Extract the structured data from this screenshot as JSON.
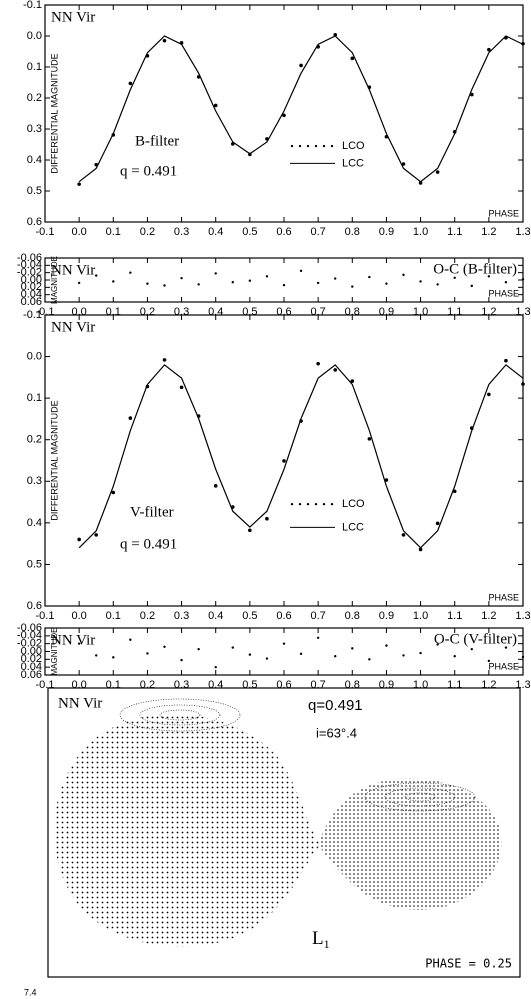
{
  "chart_data": [
    {
      "type": "scatter",
      "title": "NN Vir",
      "x_label": "PHASE",
      "y_label": "DIFFERENTIAL MAGNITUDE",
      "annotations": [
        "B-filter",
        "q  =  0.491"
      ],
      "x": [
        0,
        0.05,
        0.1,
        0.15,
        0.2,
        0.25,
        0.3,
        0.35,
        0.4,
        0.45,
        0.5,
        0.55,
        0.6,
        0.65,
        0.7,
        0.75,
        0.8,
        0.85,
        0.9,
        0.95,
        1,
        1.05,
        1.1,
        1.15,
        1.2,
        1.25,
        1.3
      ],
      "series": [
        {
          "name": "LCO",
          "style": "dots",
          "color": "#000000",
          "values": [
            0.478,
            0.415,
            0.319,
            0.153,
            0.064,
            0.015,
            0.022,
            0.132,
            0.224,
            0.348,
            0.382,
            0.332,
            0.256,
            0.095,
            0.035,
            -0.004,
            0.072,
            0.165,
            0.325,
            0.413,
            0.474,
            0.439,
            0.309,
            0.189,
            0.044,
            0.006,
            0.025
          ]
        },
        {
          "name": "LCC",
          "style": "line",
          "color": "#000000",
          "values": [
            0.47,
            0.427,
            0.315,
            0.173,
            0.054,
            0,
            0.027,
            0.12,
            0.242,
            0.342,
            0.38,
            0.342,
            0.242,
            0.12,
            0.027,
            0,
            0.054,
            0.173,
            0.315,
            0.427,
            0.47,
            0.427,
            0.315,
            0.173,
            0.054,
            0,
            0.027
          ]
        }
      ],
      "xlim": [
        -0.1,
        1.3
      ],
      "xticks": [
        -0.1,
        {
          "value": 0,
          "label": "0.0"
        },
        0.1,
        0.2,
        0.3,
        0.4,
        0.5,
        0.6,
        0.7,
        0.8,
        0.9,
        {
          "value": 1,
          "label": "1.0"
        },
        1.1,
        1.2,
        1.3
      ],
      "ylim": [
        -0.1,
        0.6
      ],
      "y_inverted": true,
      "yticks": [
        -0.1,
        {
          "value": 0,
          "label": "0.0"
        },
        0.1,
        0.2,
        0.3,
        0.4,
        0.5,
        0.6
      ]
    },
    {
      "type": "residual",
      "title": "NN Vir",
      "x_label": "PHASE",
      "y_label": "MAGNITUDE",
      "annotations": [
        "O-C (B-filter)"
      ],
      "x": [
        0,
        0.05,
        0.1,
        0.15,
        0.2,
        0.25,
        0.3,
        0.35,
        0.4,
        0.45,
        0.5,
        0.55,
        0.6,
        0.65,
        0.7,
        0.75,
        0.8,
        0.85,
        0.9,
        0.95,
        1,
        1.05,
        1.1,
        1.15,
        1.2,
        1.25,
        1.3
      ],
      "values": [
        0.008,
        -0.012,
        0.004,
        -0.02,
        0.01,
        0.015,
        -0.005,
        0.012,
        -0.018,
        0.006,
        0.002,
        -0.01,
        0.014,
        -0.025,
        0.008,
        -0.004,
        0.018,
        -0.008,
        0.01,
        -0.014,
        0.004,
        0.012,
        -0.006,
        0.016,
        -0.01,
        0.006,
        -0.002
      ],
      "xlim": [
        -0.1,
        1.3
      ],
      "xticks": [
        -0.1,
        {
          "value": 0,
          "label": "0.0"
        },
        0.1,
        0.2,
        0.3,
        0.4,
        0.5,
        0.6,
        0.7,
        0.8,
        0.9,
        {
          "value": 1,
          "label": "1.0"
        },
        1.1,
        1.2,
        1.3
      ],
      "ylim": [
        -0.06,
        0.06
      ],
      "y_inverted": true,
      "yticks": [
        -0.06,
        -0.04,
        -0.02,
        {
          "value": 0,
          "label": "0.00"
        },
        0.02,
        0.04,
        0.06
      ]
    },
    {
      "type": "scatter",
      "title": "NN Vir",
      "x_label": "PHASE",
      "y_label": "DIFFERENTIAL MAGNITUDE",
      "annotations": [
        "V-filter",
        "q  =  0.491"
      ],
      "x": [
        0,
        0.05,
        0.1,
        0.15,
        0.2,
        0.25,
        0.3,
        0.35,
        0.4,
        0.45,
        0.5,
        0.55,
        0.6,
        0.65,
        0.7,
        0.75,
        0.8,
        0.85,
        0.9,
        0.95,
        1,
        1.05,
        1.1,
        1.15,
        1.2,
        1.25,
        1.3
      ],
      "series": [
        {
          "name": "LCO",
          "style": "dots",
          "color": "#000000",
          "values": [
            0.44,
            0.429,
            0.327,
            0.148,
            0.072,
            0.008,
            0.074,
            0.143,
            0.311,
            0.362,
            0.418,
            0.39,
            0.251,
            0.155,
            0.017,
            0.032,
            0.059,
            0.198,
            0.297,
            0.429,
            0.464,
            0.401,
            0.324,
            0.172,
            0.091,
            0.01,
            0.066
          ]
        },
        {
          "name": "LCC",
          "style": "line",
          "color": "#000000",
          "values": [
            0.46,
            0.419,
            0.312,
            0.178,
            0.067,
            0.02,
            0.052,
            0.149,
            0.271,
            0.372,
            0.41,
            0.372,
            0.271,
            0.149,
            0.052,
            0.02,
            0.067,
            0.178,
            0.312,
            0.419,
            0.46,
            0.419,
            0.312,
            0.178,
            0.067,
            0.02,
            0.052
          ]
        }
      ],
      "xlim": [
        -0.1,
        1.3
      ],
      "xticks": [
        -0.1,
        {
          "value": 0,
          "label": "0.0"
        },
        0.1,
        0.2,
        0.3,
        0.4,
        0.5,
        0.6,
        0.7,
        0.8,
        0.9,
        {
          "value": 1,
          "label": "1.0"
        },
        1.1,
        1.2,
        1.3
      ],
      "ylim": [
        -0.1,
        0.6
      ],
      "y_inverted": true,
      "yticks": [
        -0.1,
        {
          "value": 0,
          "label": "0.0"
        },
        0.1,
        0.2,
        0.3,
        0.4,
        0.5,
        0.6
      ]
    },
    {
      "type": "residual",
      "title": "NN Vir",
      "x_label": "PHASE",
      "y_label": "MAGNITUDE",
      "annotations": [
        "O-C (V-filter)"
      ],
      "x": [
        0,
        0.05,
        0.1,
        0.15,
        0.2,
        0.25,
        0.3,
        0.35,
        0.4,
        0.45,
        0.5,
        0.55,
        0.6,
        0.65,
        0.7,
        0.75,
        0.8,
        0.85,
        0.9,
        0.95,
        1,
        1.05,
        1.1,
        1.15,
        1.2,
        1.25,
        1.3
      ],
      "values": [
        -0.02,
        0.01,
        0.015,
        -0.03,
        0.005,
        -0.012,
        0.022,
        -0.006,
        0.04,
        -0.01,
        0.008,
        0.018,
        -0.02,
        0.006,
        -0.035,
        0.012,
        -0.008,
        0.02,
        -0.015,
        0.01,
        0.004,
        -0.018,
        0.012,
        -0.006,
        0.024,
        -0.01,
        0.014
      ],
      "xlim": [
        -0.1,
        1.3
      ],
      "xticks": [
        -0.1,
        {
          "value": 0,
          "label": "0.0"
        },
        0.1,
        0.2,
        0.3,
        0.4,
        0.5,
        0.6,
        0.7,
        0.8,
        0.9,
        {
          "value": 1,
          "label": "1.0"
        },
        1.1,
        1.2,
        1.3
      ],
      "ylim": [
        -0.06,
        0.06
      ],
      "y_inverted": true,
      "yticks": [
        -0.06,
        -0.04,
        -0.02,
        {
          "value": 0,
          "label": "0.00"
        },
        0.02,
        0.04,
        0.06
      ]
    }
  ],
  "diagram": {
    "title": "NN Vir",
    "mass_ratio": "q=0.491",
    "inclination": "i=63°.4",
    "point_label": "L",
    "point_subscript": "1",
    "phase": "PHASE = 0.25"
  },
  "footer": "7.4"
}
